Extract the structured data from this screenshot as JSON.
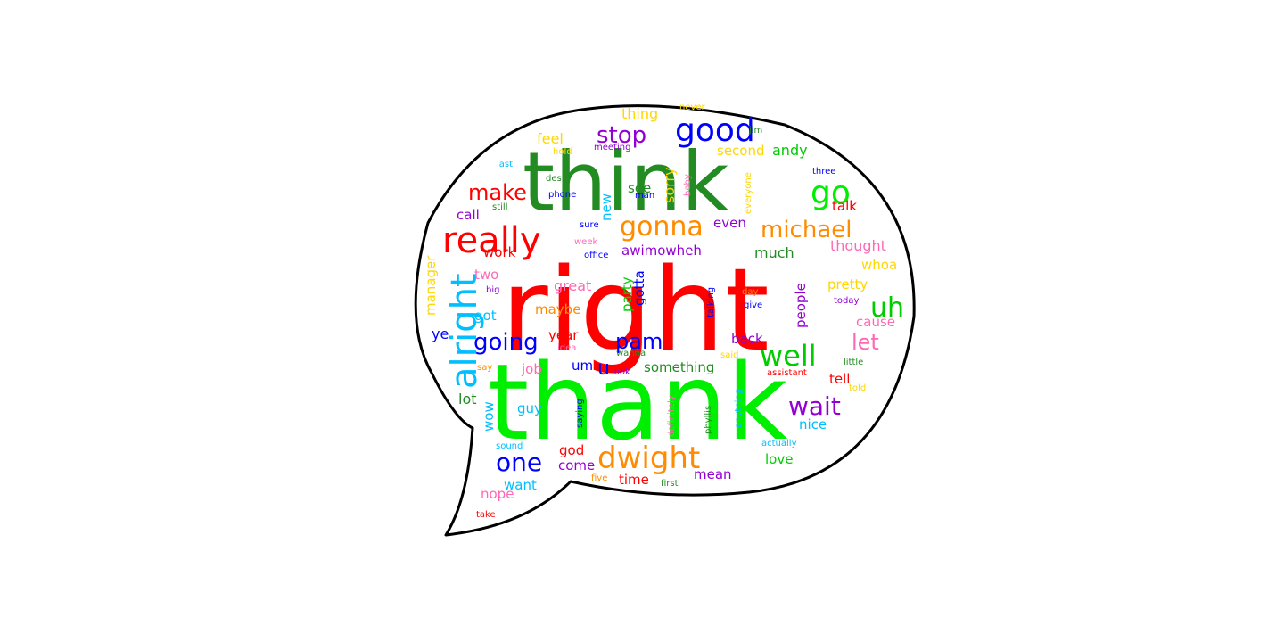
{
  "word_cloud": {
    "words": [
      {
        "text": "think",
        "color": "#228B22"
      },
      {
        "text": "right",
        "color": "#FF0000"
      },
      {
        "text": "thank",
        "color": "#00EE00"
      },
      {
        "text": "really",
        "color": "#FF0000"
      },
      {
        "text": "good",
        "color": "#0000FF"
      },
      {
        "text": "stop",
        "color": "#9400D3"
      },
      {
        "text": "go",
        "color": "#00EE00"
      },
      {
        "text": "gonna",
        "color": "#FF8C00"
      },
      {
        "text": "michael",
        "color": "#FF8C00"
      },
      {
        "text": "alright",
        "color": "#00BFFF"
      },
      {
        "text": "uh",
        "color": "#00CC00"
      },
      {
        "text": "well",
        "color": "#00CC00"
      },
      {
        "text": "going",
        "color": "#0000FF"
      },
      {
        "text": "pam",
        "color": "#0000FF"
      },
      {
        "text": "one",
        "color": "#0000FF"
      },
      {
        "text": "dwight",
        "color": "#FF8C00"
      },
      {
        "text": "wait",
        "color": "#9400D3"
      },
      {
        "text": "make",
        "color": "#FF0000"
      },
      {
        "text": "let",
        "color": "#FF69B4"
      },
      {
        "text": "thing",
        "color": "#FFD700"
      },
      {
        "text": "feel",
        "color": "#FFD700"
      },
      {
        "text": "second",
        "color": "#FFD700"
      },
      {
        "text": "andy",
        "color": "#00CC00"
      },
      {
        "text": "call",
        "color": "#9400D3"
      },
      {
        "text": "see",
        "color": "#228B22"
      },
      {
        "text": "new",
        "color": "#00BFFF"
      },
      {
        "text": "sorry",
        "color": "#FFD700"
      },
      {
        "text": "even",
        "color": "#9400D3"
      },
      {
        "text": "talk",
        "color": "#FF0000"
      },
      {
        "text": "thought",
        "color": "#FF69B4"
      },
      {
        "text": "work",
        "color": "#FF0000"
      },
      {
        "text": "much",
        "color": "#228B22"
      },
      {
        "text": "whoa",
        "color": "#FFD700"
      },
      {
        "text": "manager",
        "color": "#FFD700"
      },
      {
        "text": "two",
        "color": "#FF69B4"
      },
      {
        "text": "awimowheh",
        "color": "#9400D3"
      },
      {
        "text": "gotta",
        "color": "#0000FF"
      },
      {
        "text": "party",
        "color": "#00CC00"
      },
      {
        "text": "great",
        "color": "#FF69B4"
      },
      {
        "text": "pretty",
        "color": "#FFD700"
      },
      {
        "text": "people",
        "color": "#9400D3"
      },
      {
        "text": "cause",
        "color": "#FF69B4"
      },
      {
        "text": "got",
        "color": "#00BFFF"
      },
      {
        "text": "maybe",
        "color": "#FF8C00"
      },
      {
        "text": "ye",
        "color": "#0000FF"
      },
      {
        "text": "year",
        "color": "#FF0000"
      },
      {
        "text": "back",
        "color": "#9400D3"
      },
      {
        "text": "um",
        "color": "#0000FF"
      },
      {
        "text": "u",
        "color": "#0000FF"
      },
      {
        "text": "something",
        "color": "#228B22"
      },
      {
        "text": "job",
        "color": "#FF69B4"
      },
      {
        "text": "tell",
        "color": "#FF0000"
      },
      {
        "text": "lot",
        "color": "#228B22"
      },
      {
        "text": "guy",
        "color": "#00BFFF"
      },
      {
        "text": "wow",
        "color": "#00BFFF"
      },
      {
        "text": "nice",
        "color": "#00BFFF"
      },
      {
        "text": "god",
        "color": "#FF0000"
      },
      {
        "text": "come",
        "color": "#9400D3"
      },
      {
        "text": "love",
        "color": "#00CC00"
      },
      {
        "text": "mean",
        "color": "#9400D3"
      },
      {
        "text": "time",
        "color": "#FF0000"
      },
      {
        "text": "want",
        "color": "#00BFFF"
      },
      {
        "text": "nope",
        "color": "#FF69B4"
      },
      {
        "text": "never",
        "color": "#FFD700"
      },
      {
        "text": "jim",
        "color": "#228B22"
      },
      {
        "text": "meeting",
        "color": "#9400D3"
      },
      {
        "text": "hold",
        "color": "#FFD700"
      },
      {
        "text": "last",
        "color": "#00BFFF"
      },
      {
        "text": "three",
        "color": "#0000FF"
      },
      {
        "text": "desk",
        "color": "#228B22"
      },
      {
        "text": "phone",
        "color": "#0000FF"
      },
      {
        "text": "man",
        "color": "#0000FF"
      },
      {
        "text": "baby",
        "color": "#FF69B4"
      },
      {
        "text": "everyone",
        "color": "#FFD700"
      },
      {
        "text": "still",
        "color": "#228B22"
      },
      {
        "text": "sure",
        "color": "#0000FF"
      },
      {
        "text": "week",
        "color": "#FF69B4"
      },
      {
        "text": "office",
        "color": "#0000FF"
      },
      {
        "text": "big",
        "color": "#9400D3"
      },
      {
        "text": "talking",
        "color": "#0000FF"
      },
      {
        "text": "day",
        "color": "#FF8C00"
      },
      {
        "text": "give",
        "color": "#0000FF"
      },
      {
        "text": "today",
        "color": "#9400D3"
      },
      {
        "text": "idea",
        "color": "#FF69B4"
      },
      {
        "text": "wanna",
        "color": "#228B22"
      },
      {
        "text": "said",
        "color": "#FFD700"
      },
      {
        "text": "look",
        "color": "#9400D3"
      },
      {
        "text": "assistant",
        "color": "#FF0000"
      },
      {
        "text": "little",
        "color": "#228B22"
      },
      {
        "text": "say",
        "color": "#FF8C00"
      },
      {
        "text": "told",
        "color": "#FFD700"
      },
      {
        "text": "saying",
        "color": "#0000FF"
      },
      {
        "text": "definitely",
        "color": "#FF69B4"
      },
      {
        "text": "phyllis",
        "color": "#228B22"
      },
      {
        "text": "anything",
        "color": "#00BFFF"
      },
      {
        "text": "actually",
        "color": "#00BFFF"
      },
      {
        "text": "sound",
        "color": "#00BFFF"
      },
      {
        "text": "five",
        "color": "#FF8C00"
      },
      {
        "text": "first",
        "color": "#228B22"
      },
      {
        "text": "take",
        "color": "#FF0000"
      }
    ]
  }
}
